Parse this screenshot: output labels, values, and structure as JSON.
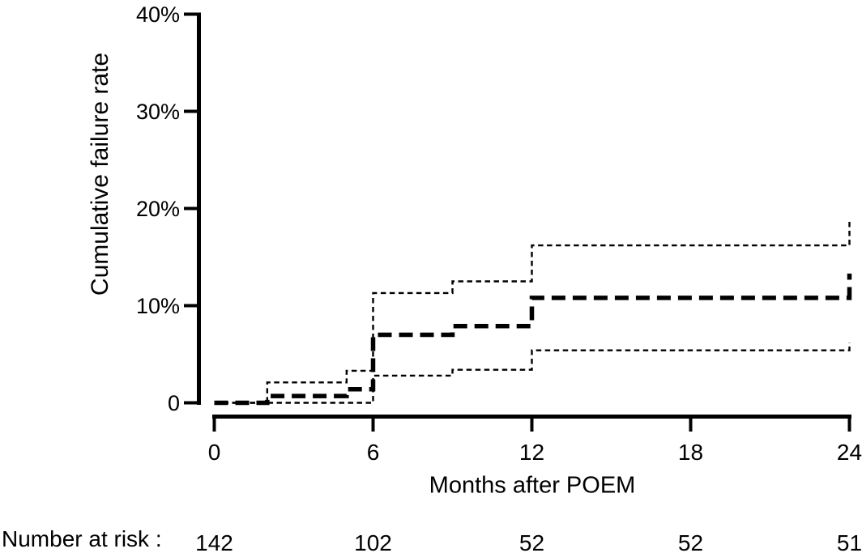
{
  "figure": {
    "background": "#ffffff",
    "line_color": "#000000"
  },
  "chart_data": {
    "type": "line",
    "subtype": "step-survival",
    "title": "",
    "xlabel": "Months after POEM",
    "ylabel": "Cumulative failure rate",
    "xlim": [
      0,
      24
    ],
    "ylim": [
      0,
      40
    ],
    "x_ticks": [
      0,
      6,
      12,
      18,
      24
    ],
    "x_tick_labels": [
      "0",
      "6",
      "12",
      "18",
      "24"
    ],
    "y_ticks": [
      0,
      10,
      20,
      30,
      40
    ],
    "y_tick_labels": [
      "0",
      "10%",
      "20%",
      "30%",
      "40%"
    ],
    "grid": false,
    "legend_position": "none",
    "y_unit": "percent",
    "series": [
      {
        "name": "ci-upper",
        "label": "95% CI upper bound",
        "style": "thin-dashed",
        "steps": [
          [
            0,
            0
          ],
          [
            2,
            2.1
          ],
          [
            5,
            3.3
          ],
          [
            6,
            11.3
          ],
          [
            9,
            12.5
          ],
          [
            12,
            16.2
          ]
        ],
        "end_x": 24,
        "end_value": 18.7
      },
      {
        "name": "ci-lower",
        "label": "95% CI lower bound",
        "style": "thin-dashed",
        "steps": [
          [
            0,
            0
          ],
          [
            6,
            2.8
          ],
          [
            9,
            3.4
          ],
          [
            12,
            5.4
          ]
        ],
        "end_x": 24,
        "end_value": 6.2
      },
      {
        "name": "estimate",
        "label": "Cumulative failure rate estimate",
        "style": "thick-dashed",
        "steps": [
          [
            0,
            0
          ],
          [
            2,
            0.7
          ],
          [
            5,
            1.4
          ],
          [
            6,
            7.0
          ],
          [
            9,
            7.9
          ],
          [
            12,
            10.8
          ]
        ],
        "end_x": 24,
        "end_value": 13.3
      }
    ],
    "number_at_risk": {
      "label": "Number at risk :",
      "months": [
        0,
        6,
        12,
        18,
        24
      ],
      "values": [
        "142",
        "102",
        "52",
        "52",
        "51"
      ]
    }
  }
}
